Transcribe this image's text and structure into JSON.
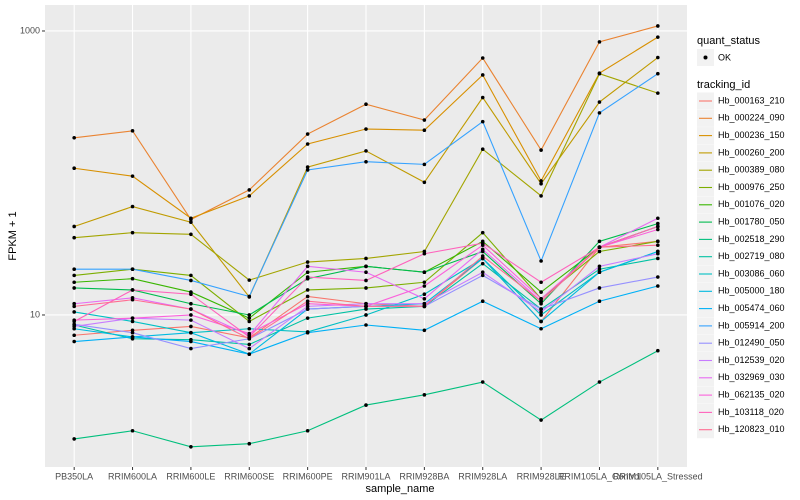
{
  "chart_data": {
    "type": "line",
    "x_label": "sample_name",
    "y_label": "FPKM + 1",
    "categories": [
      "PB350LA",
      "RRIM600LA",
      "RRIM600LE",
      "RRIM600SE",
      "RRIM600PE",
      "RRIM901LA",
      "RRIM928BA",
      "RRIM928LA",
      "RRIM928LE",
      "RRIM105LA_Control",
      "RRIM105LA_Stressed"
    ],
    "log_y": true,
    "grid": true,
    "ylim": [
      0.85,
      1524
    ],
    "yticks": [
      10,
      1000
    ],
    "legend_position": "right",
    "point_legend_title": "quant_status",
    "point_legend_label": "OK",
    "legend_title": "tracking_id",
    "series": [
      {
        "name": "Hb_000163_210",
        "color": "#F8766D",
        "values": [
          7.2,
          7.8,
          8.3,
          6.9,
          13.5,
          12,
          11.5,
          25,
          9,
          30,
          33
        ]
      },
      {
        "name": "Hb_000224_090",
        "color": "#EA8331",
        "values": [
          177,
          198,
          47,
          76,
          188,
          305,
          236,
          645,
          145,
          838,
          1085
        ]
      },
      {
        "name": "Hb_000236_150",
        "color": "#D89000",
        "values": [
          108,
          95,
          48,
          69,
          160,
          204,
          200,
          490,
          88,
          505,
          905
        ]
      },
      {
        "name": "Hb_000260_200",
        "color": "#C09B00",
        "values": [
          42,
          58,
          45,
          13.4,
          110,
          143,
          86,
          340,
          84,
          316,
          650
        ]
      },
      {
        "name": "Hb_000389_080",
        "color": "#A3A500",
        "values": [
          35,
          38,
          37,
          17.6,
          23.6,
          25,
          28,
          147,
          69,
          500,
          365
        ]
      },
      {
        "name": "Hb_000976_250",
        "color": "#7CAE00",
        "values": [
          19,
          21,
          19,
          9,
          15,
          15.5,
          17,
          38,
          13,
          28,
          33
        ]
      },
      {
        "name": "Hb_001076_020",
        "color": "#39B600",
        "values": [
          17,
          18,
          14.5,
          9.5,
          20,
          22,
          20,
          33,
          14.5,
          30,
          42
        ]
      },
      {
        "name": "Hb_001780_050",
        "color": "#00BB4E",
        "values": [
          15.5,
          15,
          12,
          10,
          18,
          22,
          20,
          28,
          12,
          33,
          44
        ]
      },
      {
        "name": "Hb_002518_290",
        "color": "#00BF7D",
        "values": [
          1.34,
          1.53,
          1.18,
          1.24,
          1.53,
          2.32,
          2.74,
          3.37,
          1.82,
          3.37,
          5.6
        ]
      },
      {
        "name": "Hb_002719_080",
        "color": "#00C1A3",
        "values": [
          8.5,
          6.8,
          6.7,
          6.2,
          9.5,
          11,
          11.5,
          23,
          11,
          21,
          25
        ]
      },
      {
        "name": "Hb_003086_060",
        "color": "#00BFC4",
        "values": [
          10.5,
          9,
          7.5,
          8,
          7.6,
          10,
          14,
          25,
          10,
          20,
          28
        ]
      },
      {
        "name": "Hb_005000_180",
        "color": "#00BAE0",
        "values": [
          8,
          7,
          7.5,
          5.3,
          11,
          11.5,
          12,
          25,
          9,
          20,
          28
        ]
      },
      {
        "name": "Hb_005474_060",
        "color": "#00B0F6",
        "values": [
          6.5,
          7,
          6.5,
          5.3,
          7.5,
          8.5,
          7.8,
          12.5,
          8,
          12.5,
          16
        ]
      },
      {
        "name": "Hb_005914_200",
        "color": "#35A2FF",
        "values": [
          21,
          21,
          17.5,
          13.5,
          105,
          120,
          115,
          230,
          24,
          265,
          500
        ]
      },
      {
        "name": "Hb_012490_050",
        "color": "#9590FF",
        "values": [
          8.6,
          7.5,
          5.8,
          6.8,
          11,
          11.5,
          11.5,
          19,
          11,
          15.5,
          18.5
        ]
      },
      {
        "name": "Hb_012539_020",
        "color": "#C77CFF",
        "values": [
          8.3,
          9.5,
          9.2,
          5.8,
          11.5,
          12,
          12,
          20,
          10.5,
          22,
          27
        ]
      },
      {
        "name": "Hb_032969_030",
        "color": "#E76BF3",
        "values": [
          12,
          13.2,
          11,
          7.2,
          22,
          20,
          13,
          29,
          12.5,
          30,
          48
        ]
      },
      {
        "name": "Hb_062135_020",
        "color": "#FA62DB",
        "values": [
          9.2,
          9.5,
          10,
          7.4,
          12,
          11.5,
          16,
          31,
          13,
          30,
          40
        ]
      },
      {
        "name": "Hb_103118_020",
        "color": "#FF62BC",
        "values": [
          9,
          15,
          14,
          7,
          18.5,
          17.5,
          27,
          32,
          17,
          30,
          42
        ]
      },
      {
        "name": "Hb_120823_010",
        "color": "#FF6C91",
        "values": [
          11.5,
          12.8,
          11,
          6.8,
          12.5,
          11.5,
          11.5,
          26,
          12.5,
          30,
          31
        ]
      }
    ]
  }
}
